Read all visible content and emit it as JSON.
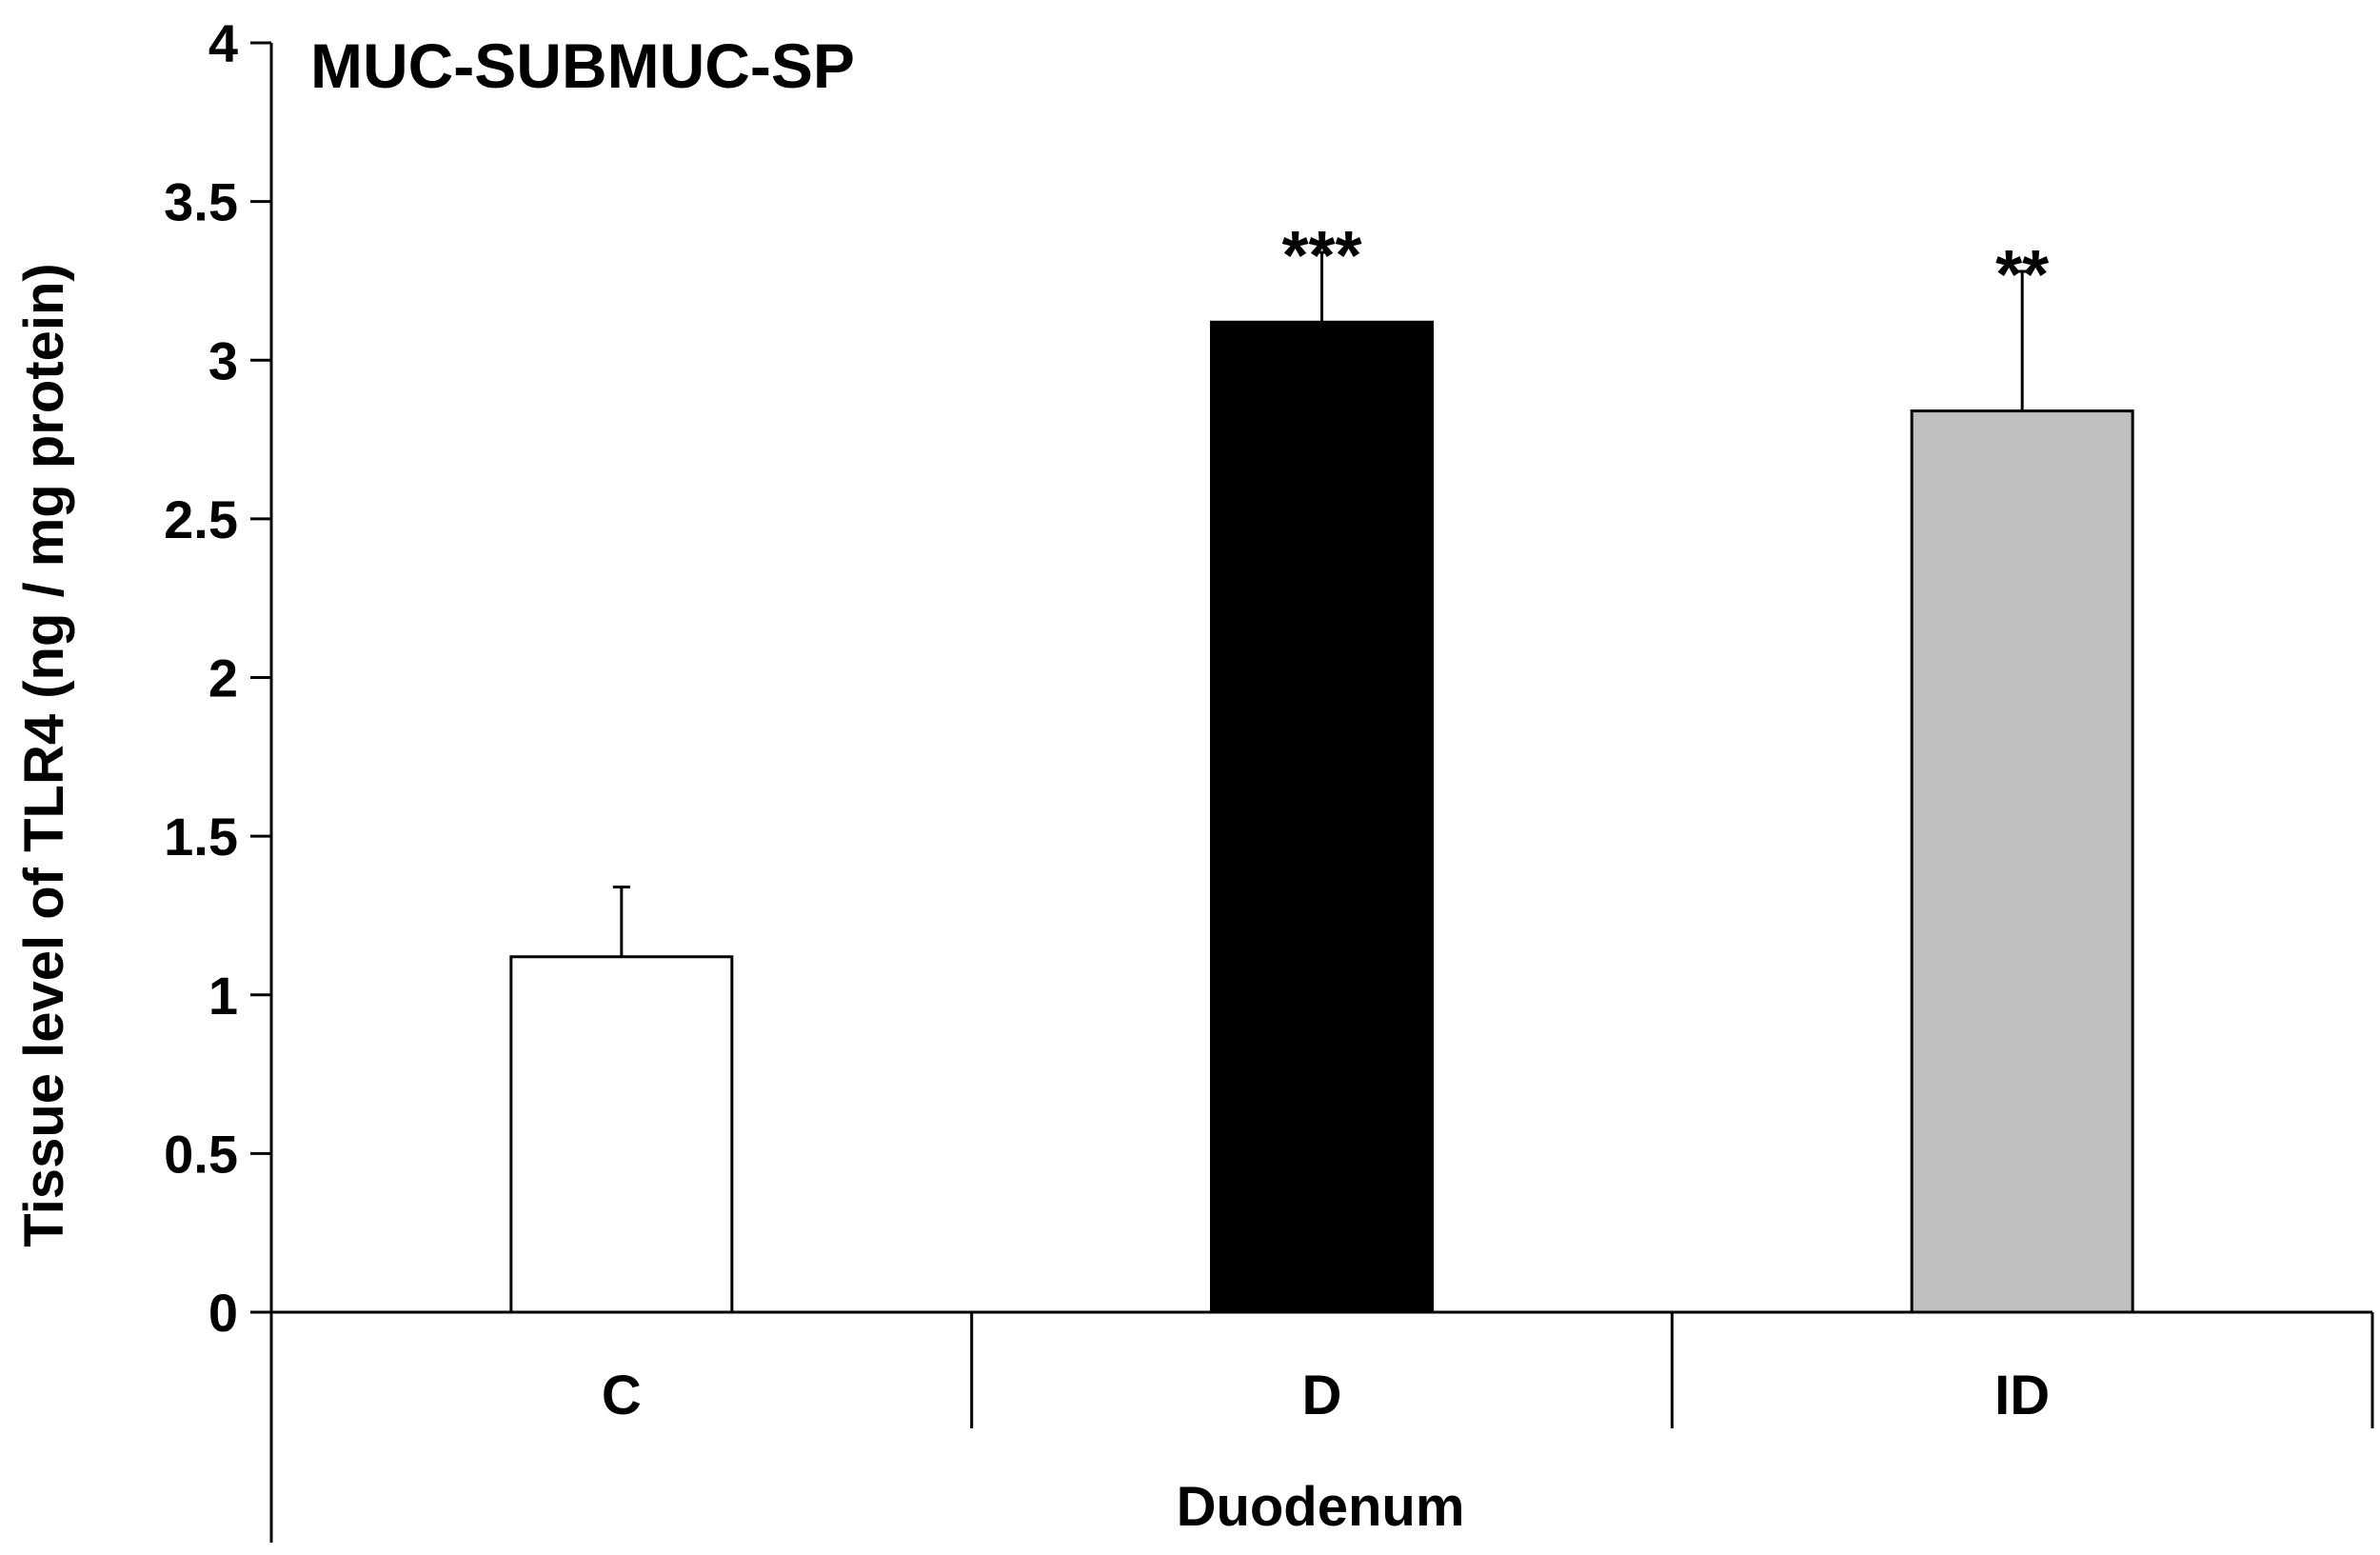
{
  "chart_data": {
    "type": "bar",
    "title": "MUC-SUBMUC-SP",
    "xlabel": "Duodenum",
    "ylabel": "Tissue level of TLR4 (ng / mg protein)",
    "ylim": [
      0,
      4
    ],
    "yticks": [
      0,
      0.5,
      1,
      1.5,
      2,
      2.5,
      3,
      3.5,
      4
    ],
    "ytick_labels": [
      "0",
      "0.5",
      "1",
      "1.5",
      "2",
      "2.5",
      "3",
      "3.5",
      "4"
    ],
    "categories": [
      "C",
      "D",
      "ID"
    ],
    "values": [
      1.12,
      3.12,
      2.84
    ],
    "errors": [
      0.22,
      0.22,
      0.44
    ],
    "significance": [
      "",
      "***",
      "**"
    ],
    "colors": [
      "#ffffff",
      "#000000",
      "#c0c0c0"
    ],
    "grid": false,
    "legend": "none"
  }
}
